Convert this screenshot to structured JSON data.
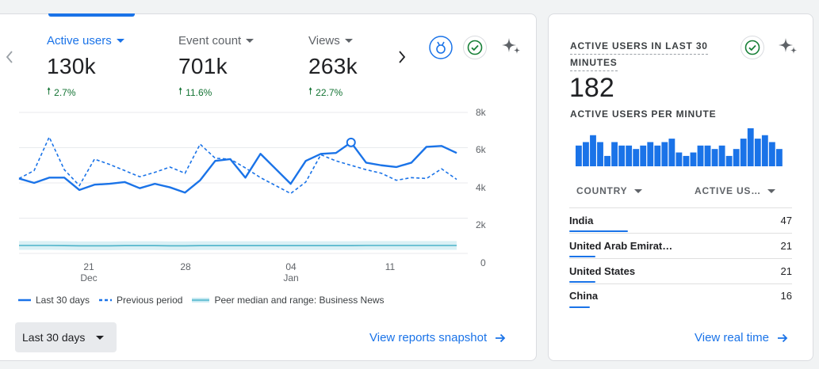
{
  "metrics": [
    {
      "label": "Active users",
      "value": "130k",
      "change": "2.7%"
    },
    {
      "label": "Event count",
      "value": "701k",
      "change": "11.6%"
    },
    {
      "label": "Views",
      "value": "263k",
      "change": "22.7%"
    }
  ],
  "chart_data": {
    "type": "line",
    "y_ticks": [
      "8k",
      "6k",
      "4k",
      "2k",
      "0"
    ],
    "ylim": [
      0,
      8000
    ],
    "x_ticks": [
      {
        "day": "21",
        "month": "Dec"
      },
      {
        "day": "28",
        "month": ""
      },
      {
        "day": "04",
        "month": "Jan"
      },
      {
        "day": "11",
        "month": ""
      }
    ],
    "x_range": [
      "2023-12-18",
      "2024-01-16"
    ],
    "series": [
      {
        "name": "Last 30 days",
        "style": "solid",
        "color": "#1a73e8",
        "values": [
          4250,
          4000,
          4300,
          4300,
          3600,
          3900,
          3950,
          4050,
          3700,
          3950,
          3750,
          3450,
          4150,
          5250,
          5350,
          4300,
          5650,
          4800,
          3950,
          5250,
          5650,
          5700,
          6300,
          5150,
          5000,
          4900,
          5150,
          6050,
          6100,
          5700
        ]
      },
      {
        "name": "Previous period",
        "style": "dashed",
        "color": "#1a73e8",
        "values": [
          4250,
          4700,
          6600,
          4750,
          3850,
          5350,
          5050,
          4700,
          4350,
          4600,
          4900,
          4550,
          6200,
          5400,
          5350,
          4850,
          4300,
          3850,
          3400,
          4050,
          5600,
          5250,
          5000,
          4750,
          4550,
          4150,
          4300,
          4250,
          4800,
          4200
        ]
      },
      {
        "name": "Peer median and range: Business News",
        "style": "band",
        "color": "#8ed4e4",
        "values": [
          450,
          450,
          450,
          440,
          430,
          430,
          430,
          440,
          440,
          440,
          430,
          430,
          440,
          440,
          440,
          440,
          440,
          440,
          440,
          440,
          440,
          440,
          440,
          450,
          450,
          450,
          450,
          450,
          450,
          450
        ]
      }
    ],
    "highlight_index": 22
  },
  "legend": {
    "last": "Last 30 days",
    "prev": "Previous period",
    "peer": "Peer median and range: Business News"
  },
  "date_range": {
    "label": "Last 30 days"
  },
  "links": {
    "snapshot": "View reports snapshot",
    "realtime": "View real time"
  },
  "realtime": {
    "heading_line1": "ACTIVE USERS IN LAST 30",
    "heading_line2": "MINUTES",
    "value": "182",
    "per_minute_label": "ACTIVE USERS PER MINUTE",
    "per_minute": [
      6,
      7,
      9,
      7,
      3,
      7,
      6,
      6,
      5,
      6,
      7,
      6,
      7,
      8,
      4,
      3,
      4,
      6,
      6,
      5,
      6,
      3,
      5,
      8,
      11,
      8,
      9,
      7,
      5
    ],
    "col_country": "COUNTRY",
    "col_users": "ACTIVE US…",
    "rows": [
      {
        "name": "India",
        "value": "47",
        "share": 0.98
      },
      {
        "name": "United Arab Emirat…",
        "value": "21",
        "share": 0.44
      },
      {
        "name": "United States",
        "value": "21",
        "share": 0.44
      },
      {
        "name": "China",
        "value": "16",
        "share": 0.34
      }
    ]
  },
  "icons": {
    "insights": "insights-medal-icon",
    "check": "check-circle-icon",
    "sparkle": "sparkle-icon",
    "prev": "chevron-left-icon",
    "next": "chevron-right-icon"
  }
}
